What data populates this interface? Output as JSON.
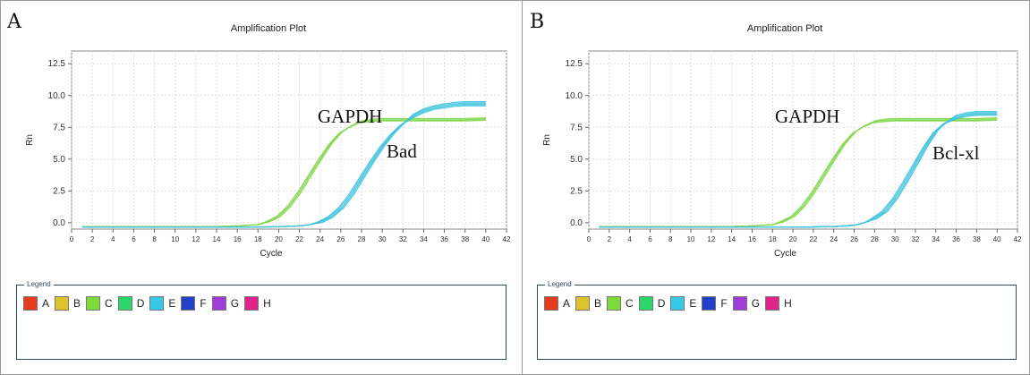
{
  "panels": {
    "A": {
      "letter": "A",
      "legend_title": "Legend",
      "legend": [
        {
          "label": "A",
          "color": "#e53b1f"
        },
        {
          "label": "B",
          "color": "#dcc42a"
        },
        {
          "label": "C",
          "color": "#7edc3a"
        },
        {
          "label": "D",
          "color": "#2bd66a"
        },
        {
          "label": "E",
          "color": "#36c8e6"
        },
        {
          "label": "F",
          "color": "#2340c8"
        },
        {
          "label": "G",
          "color": "#a03cd8"
        },
        {
          "label": "H",
          "color": "#e0258a"
        }
      ]
    },
    "B": {
      "letter": "B",
      "legend_title": "Legend",
      "legend": [
        {
          "label": "A",
          "color": "#e53b1f"
        },
        {
          "label": "B",
          "color": "#dcc42a"
        },
        {
          "label": "C",
          "color": "#7edc3a"
        },
        {
          "label": "D",
          "color": "#2bd66a"
        },
        {
          "label": "E",
          "color": "#36c8e6"
        },
        {
          "label": "F",
          "color": "#2340c8"
        },
        {
          "label": "G",
          "color": "#a03cd8"
        },
        {
          "label": "H",
          "color": "#e0258a"
        }
      ]
    }
  },
  "chart_data": [
    {
      "type": "line",
      "title": "Amplification Plot",
      "xlabel": "Cycle",
      "ylabel": "Rn",
      "xlim": [
        0,
        42
      ],
      "ylim": [
        -0.5,
        13.5
      ],
      "xticks": [
        "0",
        "2",
        "4",
        "6",
        "8",
        "10",
        "12",
        "14",
        "16",
        "18",
        "20",
        "22",
        "24",
        "26",
        "28",
        "30",
        "32",
        "34",
        "36",
        "38",
        "40",
        "42"
      ],
      "yticks": [
        "0.0",
        "2.5",
        "5.0",
        "7.5",
        "10.0",
        "12.5"
      ],
      "grid": true,
      "series": [
        {
          "name": "GAPDH",
          "color": "#82d64a",
          "replicates": 3,
          "x": [
            1,
            4,
            8,
            12,
            14,
            16,
            18,
            19,
            20,
            21,
            22,
            23,
            24,
            25,
            26,
            27,
            28,
            29,
            30,
            32,
            34,
            36,
            38,
            40
          ],
          "y": [
            -0.3,
            -0.3,
            -0.3,
            -0.3,
            -0.3,
            -0.25,
            -0.15,
            0.1,
            0.5,
            1.3,
            2.4,
            3.7,
            5.0,
            6.2,
            7.1,
            7.6,
            7.95,
            8.05,
            8.1,
            8.1,
            8.1,
            8.1,
            8.1,
            8.15
          ]
        },
        {
          "name": "Bad",
          "color": "#3fc3dd",
          "replicates": 4,
          "x": [
            1,
            4,
            8,
            12,
            16,
            20,
            22,
            23,
            24,
            25,
            26,
            27,
            28,
            29,
            30,
            31,
            32,
            33,
            34,
            35,
            36,
            37,
            38,
            40
          ],
          "y": [
            -0.35,
            -0.35,
            -0.35,
            -0.35,
            -0.35,
            -0.32,
            -0.25,
            -0.15,
            0.05,
            0.45,
            1.15,
            2.2,
            3.5,
            4.8,
            6.0,
            7.0,
            7.8,
            8.4,
            8.8,
            9.05,
            9.2,
            9.3,
            9.35,
            9.35
          ]
        }
      ]
    },
    {
      "type": "line",
      "title": "Amplification Plot",
      "xlabel": "Cycle",
      "ylabel": "Rn",
      "xlim": [
        0,
        42
      ],
      "ylim": [
        -0.5,
        13.5
      ],
      "xticks": [
        "0",
        "2",
        "4",
        "6",
        "8",
        "10",
        "12",
        "14",
        "16",
        "18",
        "20",
        "22",
        "24",
        "26",
        "28",
        "30",
        "32",
        "34",
        "36",
        "38",
        "40",
        "42"
      ],
      "yticks": [
        "0.0",
        "2.5",
        "5.0",
        "7.5",
        "10.0",
        "12.5"
      ],
      "grid": true,
      "series": [
        {
          "name": "GAPDH",
          "color": "#82d64a",
          "replicates": 3,
          "x": [
            1,
            4,
            8,
            12,
            14,
            16,
            18,
            19,
            20,
            21,
            22,
            23,
            24,
            25,
            26,
            27,
            28,
            29,
            30,
            32,
            34,
            36,
            38,
            40
          ],
          "y": [
            -0.3,
            -0.3,
            -0.3,
            -0.3,
            -0.3,
            -0.25,
            -0.15,
            0.1,
            0.5,
            1.3,
            2.4,
            3.7,
            5.0,
            6.2,
            7.1,
            7.6,
            7.95,
            8.05,
            8.1,
            8.1,
            8.1,
            8.1,
            8.1,
            8.15
          ]
        },
        {
          "name": "Bcl-xl",
          "color": "#3fc3dd",
          "replicates": 4,
          "x": [
            1,
            4,
            8,
            12,
            16,
            20,
            24,
            26,
            27,
            28,
            29,
            30,
            31,
            32,
            33,
            34,
            35,
            36,
            37,
            38,
            40
          ],
          "y": [
            -0.35,
            -0.35,
            -0.35,
            -0.35,
            -0.35,
            -0.35,
            -0.3,
            -0.2,
            0.0,
            0.35,
            0.9,
            1.9,
            3.2,
            4.6,
            6.0,
            7.2,
            7.9,
            8.3,
            8.5,
            8.6,
            8.6
          ]
        }
      ]
    }
  ]
}
